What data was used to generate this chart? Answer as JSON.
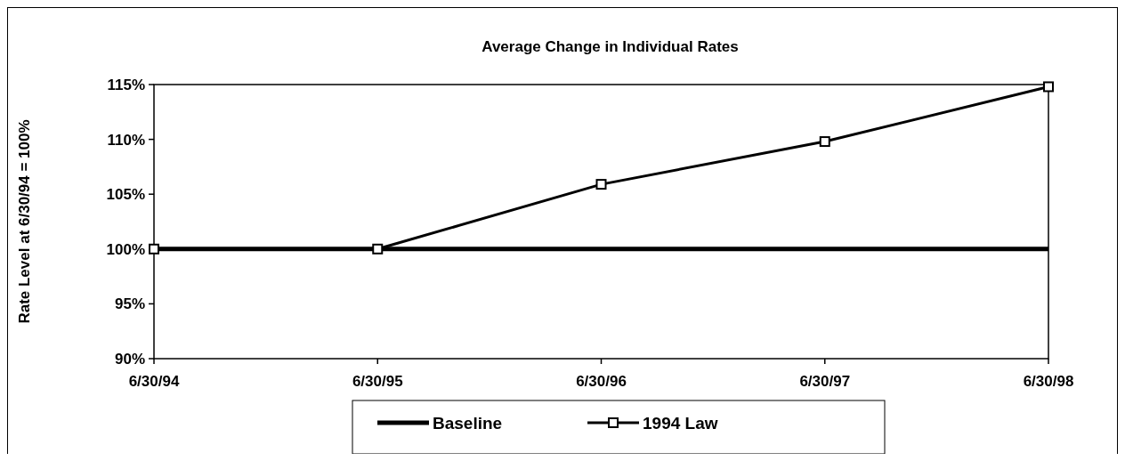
{
  "chart_data": {
    "type": "line",
    "title": "Average Change in Individual Rates",
    "ylabel": "Rate Level at 6/30/94 = 100%",
    "categories": [
      "6/30/94",
      "6/30/95",
      "6/30/96",
      "6/30/97",
      "6/30/98"
    ],
    "series": [
      {
        "name": "Baseline",
        "color": "#000000",
        "values": [
          100,
          100,
          100,
          100,
          100
        ],
        "marker": "none"
      },
      {
        "name": "1994 Law",
        "color": "#000000",
        "values": [
          100,
          100,
          105.9,
          109.8,
          114.8
        ],
        "marker": "square"
      }
    ],
    "ylim": [
      90,
      115
    ],
    "yticks": [
      {
        "value": 90,
        "label": "90%"
      },
      {
        "value": 95,
        "label": "95%"
      },
      {
        "value": 100,
        "label": "100%"
      },
      {
        "value": 105,
        "label": "105%"
      },
      {
        "value": 110,
        "label": "110%"
      },
      {
        "value": 115,
        "label": "115%"
      }
    ],
    "grid": false,
    "legend": "bottom",
    "line_style": "solid"
  }
}
